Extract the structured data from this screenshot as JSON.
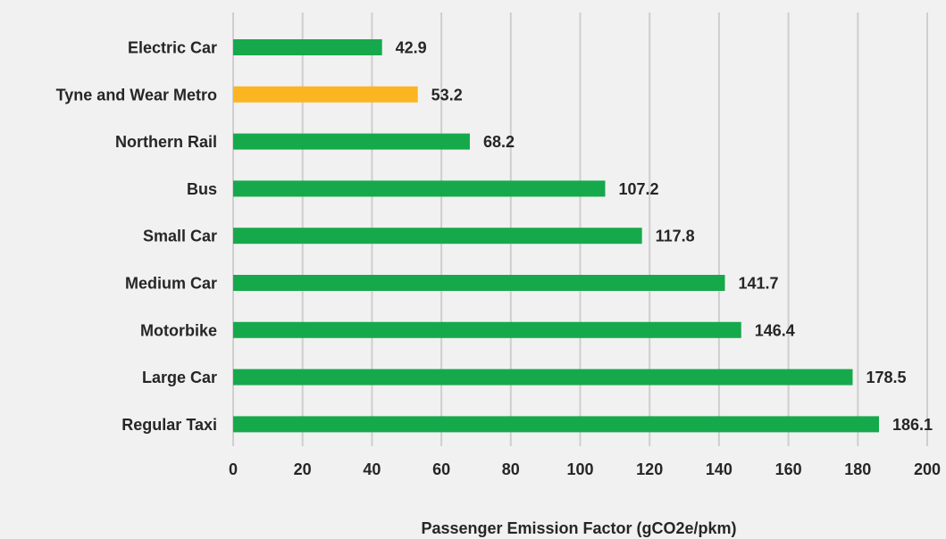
{
  "chart_data": {
    "type": "bar",
    "orientation": "horizontal",
    "categories": [
      "Electric Car",
      "Tyne and Wear Metro",
      "Northern Rail",
      "Bus",
      "Small Car",
      "Medium Car",
      "Motorbike",
      "Large Car",
      "Regular Taxi"
    ],
    "values": [
      42.9,
      53.2,
      68.2,
      107.2,
      117.8,
      141.7,
      146.4,
      178.5,
      186.1
    ],
    "value_labels": [
      "42.9",
      "53.2",
      "68.2",
      "107.2",
      "117.8",
      "141.7",
      "146.4",
      "178.5",
      "186.1"
    ],
    "bar_colors": [
      "#16a94b",
      "#fbb520",
      "#16a94b",
      "#16a94b",
      "#16a94b",
      "#16a94b",
      "#16a94b",
      "#16a94b",
      "#16a94b"
    ],
    "xlabel": "Passenger Emission Factor (gCO2e/pkm)",
    "ylabel": "",
    "xlim": [
      0,
      200
    ],
    "xticks": [
      "0",
      "20",
      "40",
      "60",
      "80",
      "100",
      "120",
      "140",
      "160",
      "180",
      "200"
    ],
    "grid": "vertical",
    "legend": "none",
    "background_color": "#f1f1f1",
    "gridline_color": "#cfcfcf",
    "text_color": "#262626"
  }
}
